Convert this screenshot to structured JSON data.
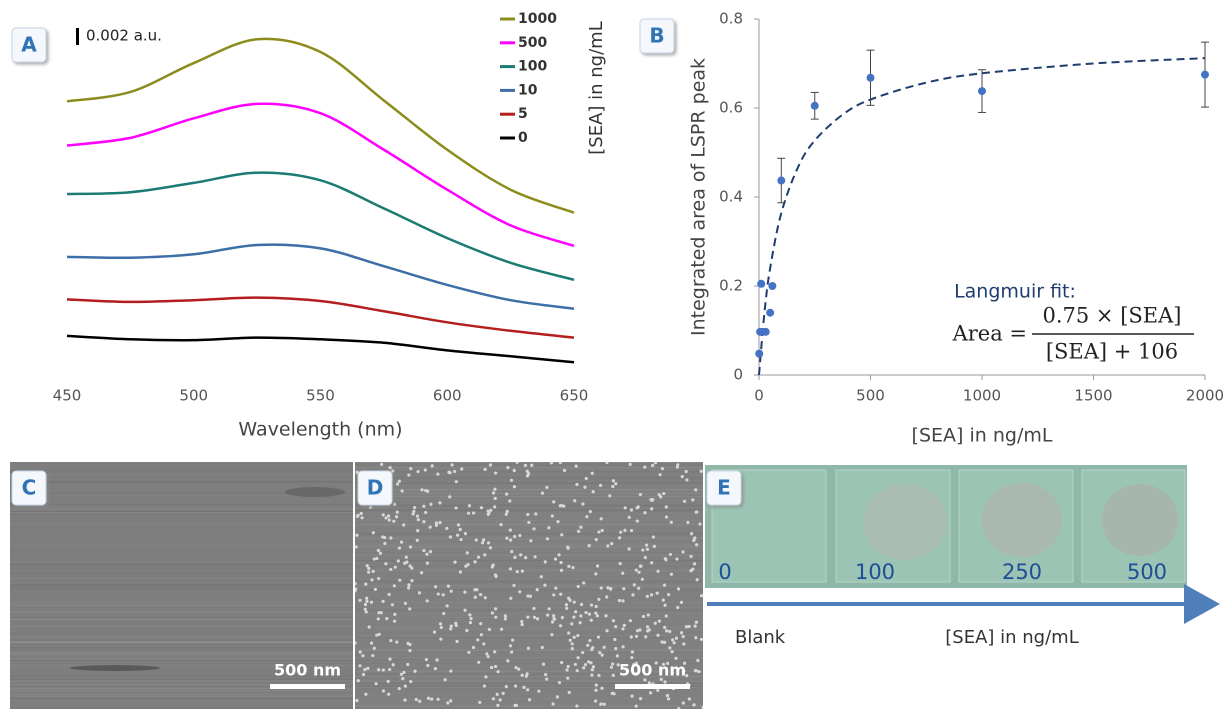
{
  "chart_data": [
    {
      "type": "line",
      "x_label": "Wavelength (nm)",
      "legend_title": "[SEA] in ng/mL",
      "scale_bar": {
        "value": 0.002,
        "label": "0.002 a.u."
      },
      "x": [
        450,
        475,
        500,
        525,
        550,
        575,
        600,
        625,
        650
      ],
      "xlim": [
        450,
        650
      ],
      "xticks": [
        450,
        500,
        550,
        600,
        650
      ],
      "ylim": [
        0,
        0.042
      ],
      "series": [
        {
          "name": "1000",
          "color": "#8c8c1c",
          "values": [
            0.0322,
            0.0333,
            0.0367,
            0.0395,
            0.038,
            0.0323,
            0.0265,
            0.0218,
            0.0191
          ]
        },
        {
          "name": "500",
          "color": "#ff00ff",
          "values": [
            0.027,
            0.0279,
            0.0302,
            0.0319,
            0.0308,
            0.0265,
            0.0218,
            0.0176,
            0.0152
          ]
        },
        {
          "name": "100",
          "color": "#1a7b73",
          "values": [
            0.0213,
            0.0215,
            0.0226,
            0.0238,
            0.0229,
            0.0196,
            0.0161,
            0.0132,
            0.0112
          ]
        },
        {
          "name": "10",
          "color": "#3c6ea8",
          "values": [
            0.0139,
            0.0138,
            0.0142,
            0.0153,
            0.0149,
            0.0128,
            0.0106,
            0.0088,
            0.0078
          ]
        },
        {
          "name": "5",
          "color": "#b41e1e",
          "values": [
            0.0089,
            0.0086,
            0.0088,
            0.0091,
            0.0087,
            0.0075,
            0.0062,
            0.0052,
            0.0044
          ]
        },
        {
          "name": "0",
          "color": "#000000",
          "values": [
            0.0046,
            0.0042,
            0.0041,
            0.0044,
            0.0042,
            0.0038,
            0.0029,
            0.0022,
            0.0015
          ]
        }
      ]
    },
    {
      "type": "scatter",
      "x_label": "[SEA] in ng/mL",
      "y_label": "Integrated area of LSPR peak",
      "xlim": [
        0,
        2000
      ],
      "xticks": [
        0,
        500,
        1000,
        1500,
        2000
      ],
      "ylim": [
        0,
        0.8
      ],
      "yticks": [
        0,
        0.2,
        0.4,
        0.6,
        0.8
      ],
      "color": "#4472c4",
      "x": [
        1,
        5,
        10,
        30,
        50,
        60,
        100,
        250,
        500,
        1000,
        2000
      ],
      "values": [
        0.048,
        0.097,
        0.205,
        0.097,
        0.14,
        0.2,
        0.437,
        0.605,
        0.668,
        0.638,
        0.675
      ],
      "errors": [
        null,
        null,
        null,
        null,
        null,
        null,
        0.05,
        0.03,
        0.062,
        0.048,
        0.073
      ],
      "fit": {
        "color": "#1f3d6e",
        "x": [
          0,
          25,
          50,
          100,
          175,
          250,
          375,
          500,
          750,
          1000,
          1500,
          2000
        ],
        "values": [
          0,
          0.143,
          0.24,
          0.364,
          0.467,
          0.527,
          0.585,
          0.619,
          0.657,
          0.678,
          0.7,
          0.712
        ]
      },
      "annotation": {
        "title": "Langmuir fit:",
        "lhs": "Area =",
        "numerator": "0.75 × [SEA]",
        "denominator": "[SEA] + 106"
      }
    }
  ],
  "panel_labels": [
    "A",
    "B",
    "C",
    "D",
    "E"
  ],
  "sem_images": [
    {
      "scale_bar": "500 nm"
    },
    {
      "scale_bar": "500 nm"
    }
  ],
  "photo": {
    "slide_labels": [
      "0",
      "100",
      "250",
      "500"
    ],
    "arrow_start": "Blank",
    "arrow_label": "[SEA] in ng/mL"
  }
}
